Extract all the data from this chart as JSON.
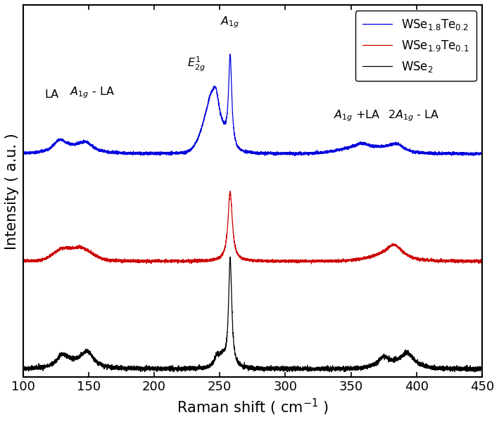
{
  "xlabel": "Raman shift ( cm$^{-1}$ )",
  "ylabel": "Intensity ( a.u. )",
  "xlim": [
    100,
    450
  ],
  "colors": {
    "blue": "#0000DD",
    "red": "#CC0000",
    "black": "#000000"
  },
  "legend": {
    "blue_label": "WSe$_{1.8}$Te$_{0.2}$",
    "red_label": "WSe$_{1.9}$Te$_{0.1}$",
    "black_label": "WSe$_2$"
  },
  "offsets": {
    "blue": 0.52,
    "red": 0.26,
    "black": 0.0
  },
  "scale": {
    "blue": 0.18,
    "red": 0.14,
    "black": 0.2
  },
  "noise_seed": 42,
  "background_color": "#ffffff"
}
